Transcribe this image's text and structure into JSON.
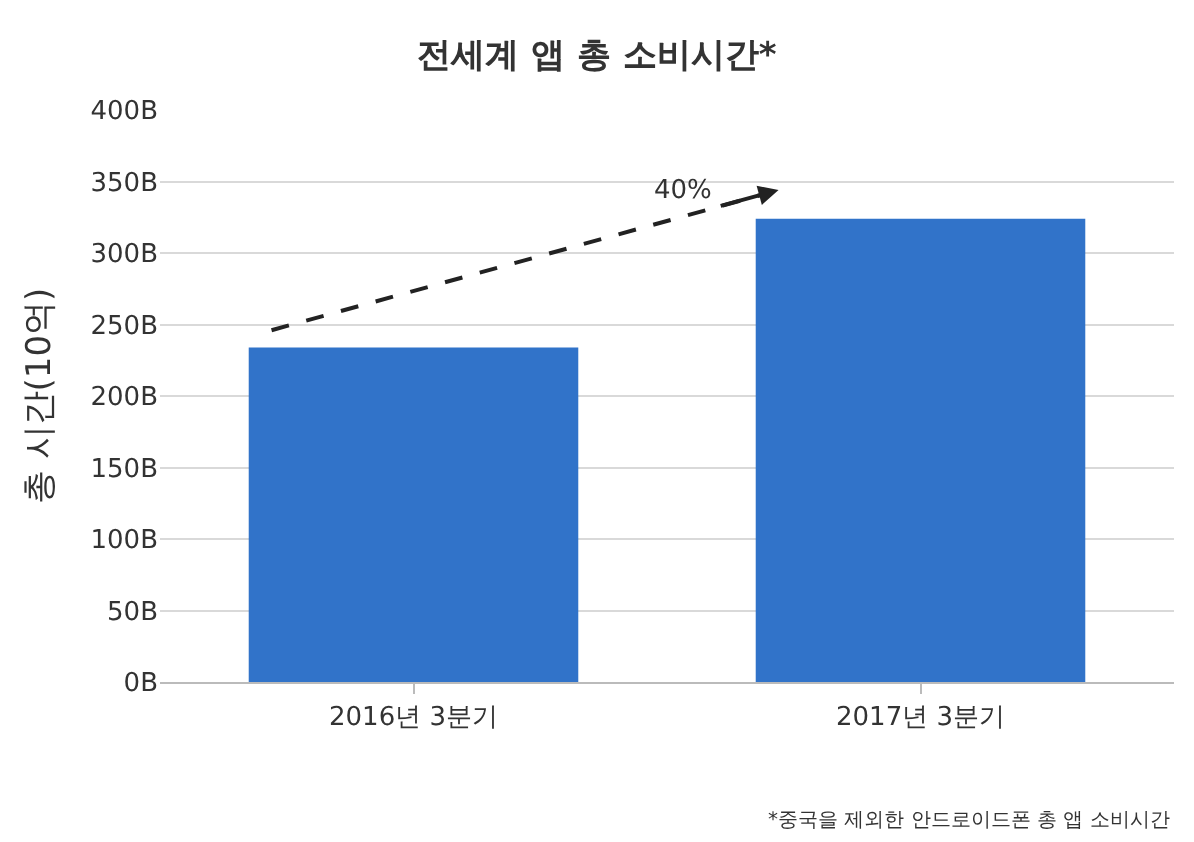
{
  "chart_data": {
    "type": "bar",
    "title": "전세계 앱 총 소비시간*",
    "ylabel": "총 시간(10억)",
    "categories": [
      "2016년 3분기",
      "2017년 3분기"
    ],
    "series": [
      {
        "color": "#3173c9",
        "values": [
          234,
          324
        ]
      }
    ],
    "ylim": [
      0,
      400
    ],
    "yticks": [
      {
        "value": 0,
        "label": "0B"
      },
      {
        "value": 50,
        "label": "50B"
      },
      {
        "value": 100,
        "label": "100B"
      },
      {
        "value": 150,
        "label": "150B"
      },
      {
        "value": 200,
        "label": "200B"
      },
      {
        "value": 250,
        "label": "250B"
      },
      {
        "value": 300,
        "label": "300B"
      },
      {
        "value": 350,
        "label": "350B"
      },
      {
        "value": 400,
        "label": "400B"
      }
    ],
    "grid": "y",
    "legend": false,
    "annotations": [
      "40%",
      "*중국을 제외한 안드로이드폰 총 앱 소비시간"
    ]
  }
}
